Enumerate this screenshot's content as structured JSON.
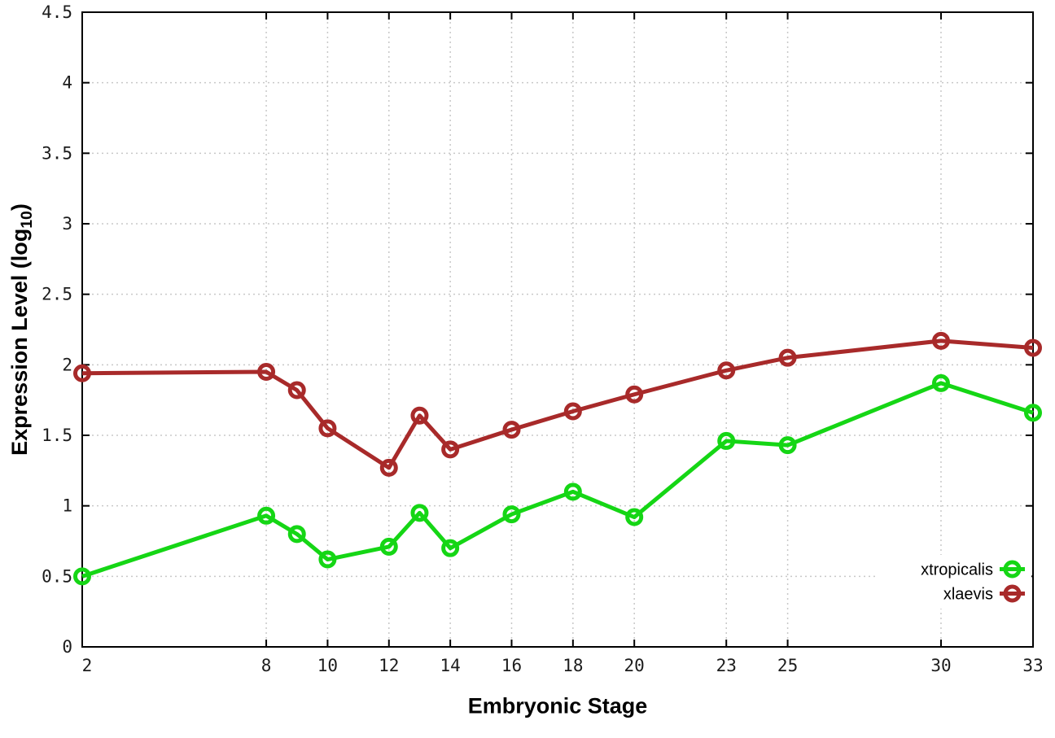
{
  "chart_data": {
    "type": "line",
    "xlabel": "Embryonic Stage",
    "ylabel_prefix": "Expression Level (log",
    "ylabel_sub": "10",
    "ylabel_suffix": ")",
    "x": [
      2,
      8,
      9,
      10,
      12,
      13,
      14,
      16,
      18,
      20,
      23,
      25,
      30,
      33
    ],
    "xlim": [
      2,
      33
    ],
    "ylim": [
      0,
      4.5
    ],
    "xtick_values": [
      2,
      8,
      10,
      12,
      14,
      16,
      18,
      20,
      23,
      25,
      30,
      33
    ],
    "xtick_labels": [
      "2",
      "8",
      "10",
      "12",
      "14",
      "16",
      "18",
      "20",
      "23",
      "25",
      "30",
      "33"
    ],
    "ytick_values": [
      0,
      0.5,
      1,
      1.5,
      2,
      2.5,
      3,
      3.5,
      4,
      4.5
    ],
    "ytick_labels": [
      "0",
      "0.5",
      "1",
      "1.5",
      "2",
      "2.5",
      "3",
      "3.5",
      "4",
      "4.5"
    ],
    "grid": true,
    "legend_position": "bottom-right",
    "series": [
      {
        "name": "xtropicalis",
        "color": "#15d615",
        "values": [
          0.5,
          0.93,
          0.8,
          0.62,
          0.71,
          0.95,
          0.7,
          0.94,
          1.1,
          0.92,
          1.46,
          1.43,
          1.87,
          1.66
        ]
      },
      {
        "name": "xlaevis",
        "color": "#a82a2a",
        "values": [
          1.94,
          1.95,
          1.82,
          1.55,
          1.27,
          1.64,
          1.4,
          1.54,
          1.67,
          1.79,
          1.96,
          2.05,
          2.17,
          2.12
        ]
      }
    ],
    "colors": {
      "grid": "#c8c8c8",
      "border": "#000000",
      "tick_text": "#1c1c1c",
      "background": "#ffffff"
    }
  }
}
